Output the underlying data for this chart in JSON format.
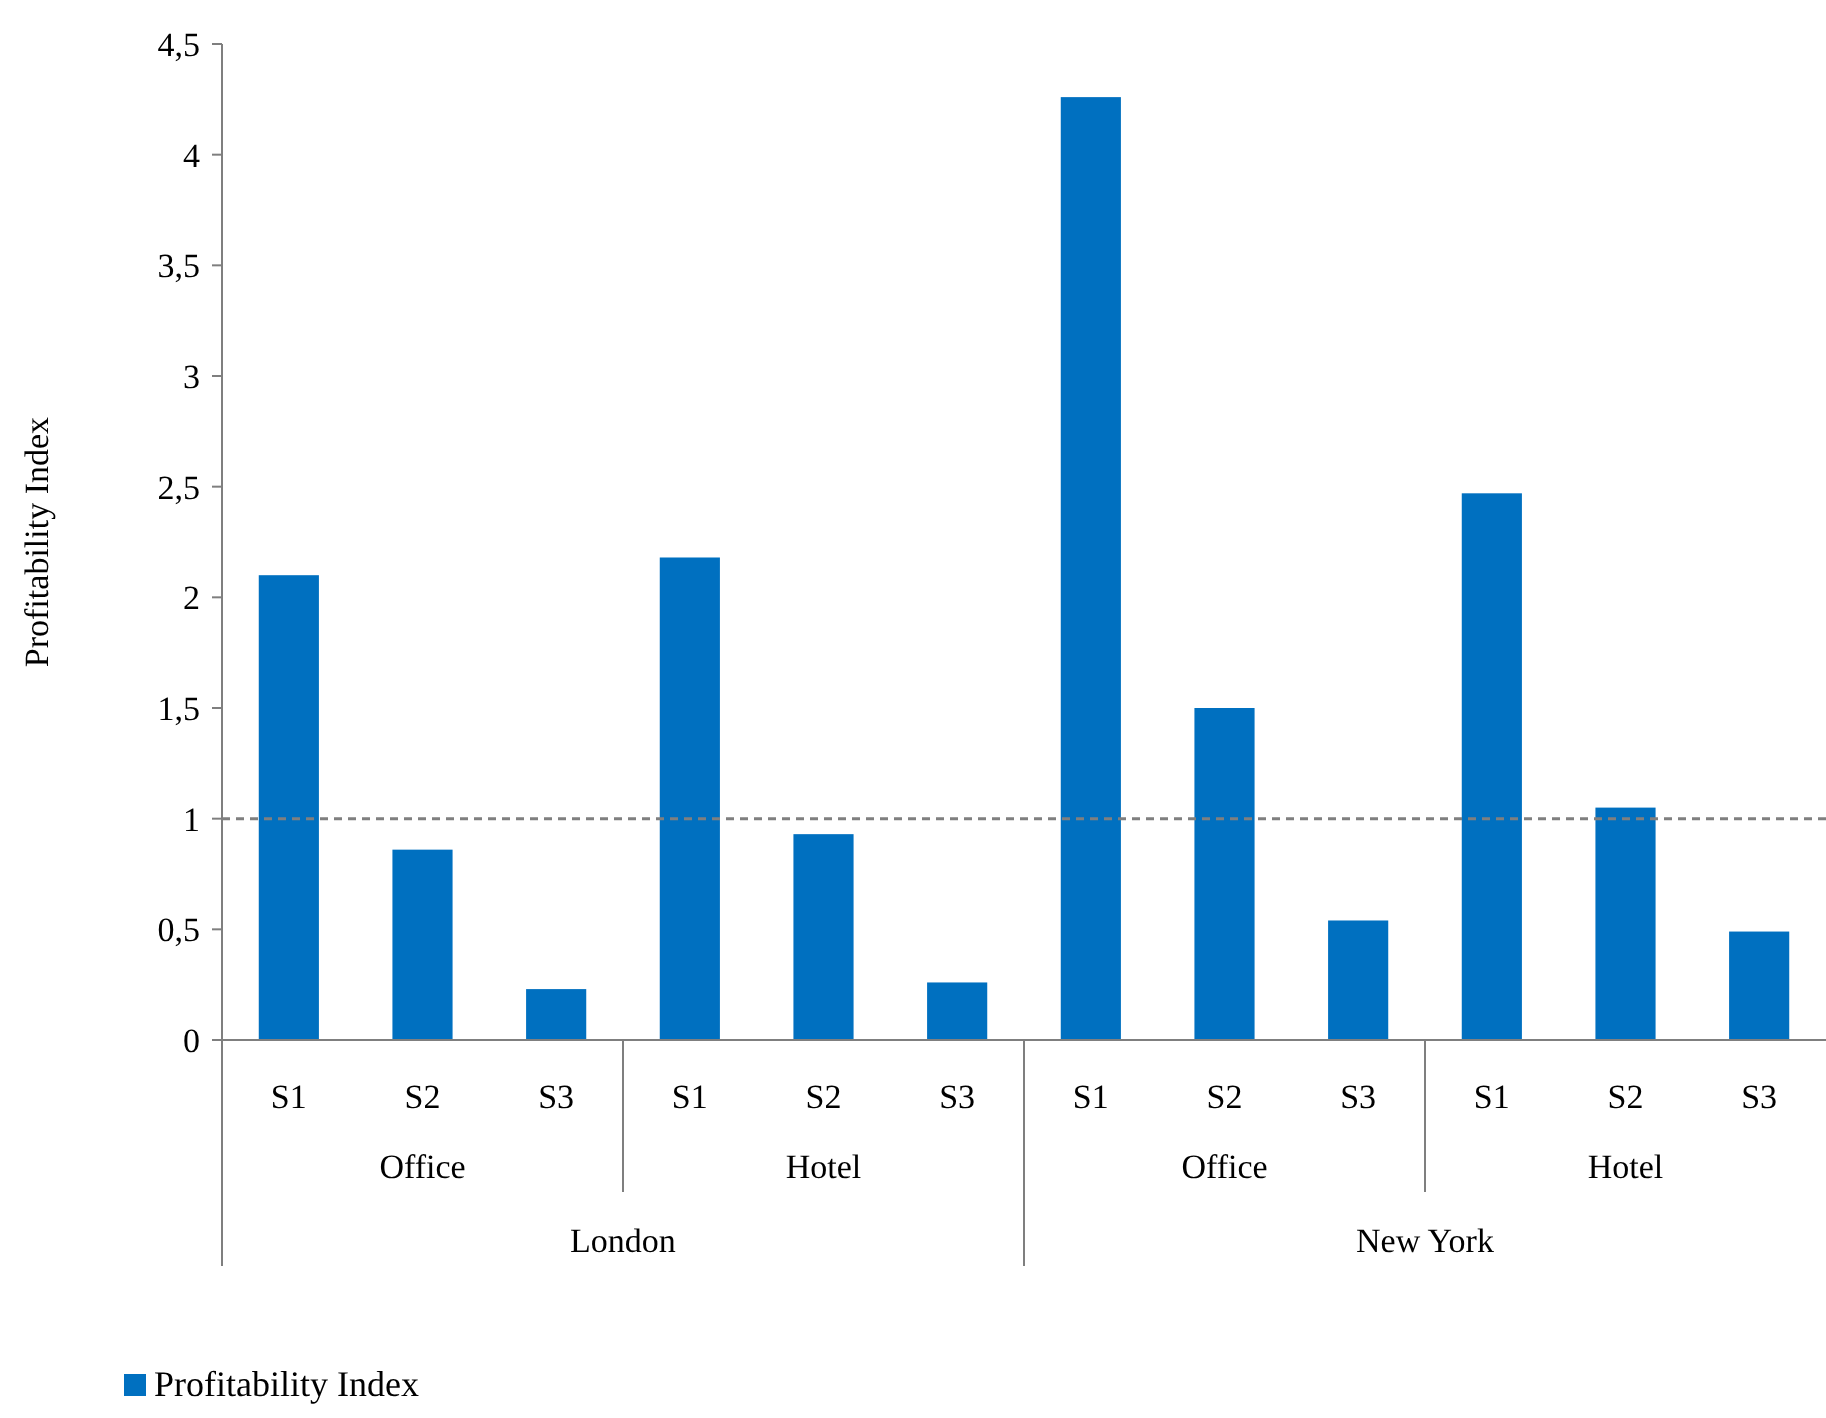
{
  "chart_data": {
    "type": "bar",
    "ylabel": "Profitability Index",
    "categories": [
      "S1",
      "S2",
      "S3",
      "S1",
      "S2",
      "S3",
      "S1",
      "S2",
      "S3",
      "S1",
      "S2",
      "S3"
    ],
    "series": [
      {
        "name": "Profitability Index",
        "color": "#0070c0",
        "values": [
          2.1,
          0.86,
          0.23,
          2.18,
          0.93,
          0.26,
          4.26,
          1.5,
          0.54,
          2.47,
          1.05,
          0.49
        ]
      }
    ],
    "ylim": [
      0,
      4.5
    ],
    "yticks": [
      0,
      {
        "value": 0.5,
        "label": "0,5"
      },
      1,
      {
        "value": 1.5,
        "label": "1,5"
      },
      2,
      {
        "value": 2.5,
        "label": "2,5"
      },
      3,
      {
        "value": 3.5,
        "label": "3,5"
      },
      4,
      {
        "value": 4.5,
        "label": "4,5"
      }
    ],
    "ref_lines": [
      {
        "axis": "y",
        "value": 1,
        "color": "#7f7f7f",
        "line_style": "dashed"
      }
    ],
    "annotations": [
      "Office",
      "Hotel",
      "Office",
      "Hotel",
      "London",
      "New York"
    ],
    "legend": "bottom",
    "grid": false
  }
}
